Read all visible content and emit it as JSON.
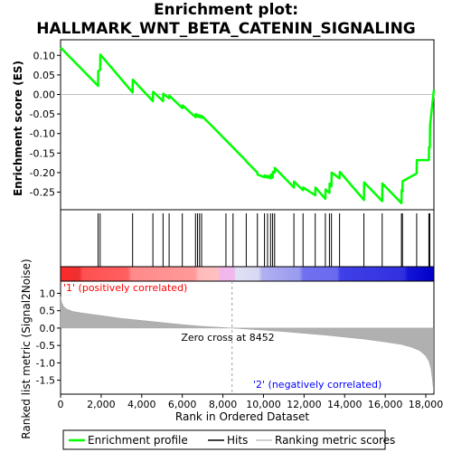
{
  "chart_data": {
    "type": "line",
    "title_line1": "Enrichment plot:",
    "title_line2": "HALLMARK_WNT_BETA_CATENIN_SIGNALING",
    "enrichment_panel": {
      "ylabel": "Enrichment score (ES)",
      "ylim": [
        -0.295,
        0.14
      ],
      "yticks": [
        0.1,
        0.05,
        0.0,
        -0.05,
        -0.1,
        -0.15,
        -0.2,
        -0.25
      ],
      "ytick_labels": [
        "0.10",
        "0.05",
        "0.00",
        "-0.05",
        "-0.10",
        "-0.15",
        "-0.20",
        "-0.25"
      ],
      "series": [
        {
          "name": "Enrichment profile",
          "color": "#00ff00",
          "x": [
            0,
            1850,
            1860,
            1950,
            1960,
            3550,
            3560,
            4550,
            4560,
            5050,
            5060,
            5350,
            5360,
            6000,
            6010,
            6650,
            6660,
            6750,
            6760,
            6850,
            6860,
            6950,
            6960,
            7350,
            9150,
            9160,
            9700,
            9710,
            10050,
            10060,
            10200,
            10210,
            10350,
            10360,
            10450,
            10460,
            10550,
            10560,
            11500,
            11510,
            11950,
            11960,
            12550,
            12560,
            13050,
            13060,
            13250,
            13260,
            13350,
            13360,
            13750,
            13760,
            14950,
            14960,
            15850,
            15860,
            16800,
            16810,
            16850,
            16860,
            17550,
            17560,
            18150,
            18160,
            18200,
            18210,
            18400
          ],
          "y": [
            0.12,
            0.022,
            0.06,
            0.063,
            0.102,
            0.005,
            0.038,
            -0.017,
            0.007,
            -0.017,
            0.002,
            -0.01,
            -0.003,
            -0.035,
            -0.028,
            -0.058,
            -0.05,
            -0.057,
            -0.052,
            -0.058,
            -0.054,
            -0.06,
            -0.055,
            -0.075,
            -0.17,
            -0.172,
            -0.2,
            -0.205,
            -0.212,
            -0.207,
            -0.213,
            -0.208,
            -0.215,
            -0.205,
            -0.213,
            -0.198,
            -0.2,
            -0.188,
            -0.238,
            -0.223,
            -0.245,
            -0.238,
            -0.258,
            -0.238,
            -0.267,
            -0.243,
            -0.252,
            -0.228,
            -0.235,
            -0.2,
            -0.215,
            -0.198,
            -0.27,
            -0.225,
            -0.273,
            -0.228,
            -0.278,
            -0.245,
            -0.248,
            -0.222,
            -0.202,
            -0.168,
            -0.168,
            -0.135,
            -0.135,
            -0.08,
            0.012
          ]
        }
      ]
    },
    "hits_panel": {
      "legend_label": "Hits",
      "positions": [
        1850,
        1950,
        3550,
        4550,
        5050,
        5350,
        6000,
        6650,
        6750,
        6850,
        6950,
        8150,
        8500,
        9150,
        9700,
        10050,
        10200,
        10350,
        10450,
        10550,
        11500,
        11950,
        12550,
        13050,
        13250,
        13350,
        13750,
        14950,
        15850,
        16800,
        16850,
        17550,
        18150,
        18200
      ]
    },
    "rank_panel": {
      "label_positive": "'1' (positively correlated)",
      "label_negative": "'2' (negatively correlated)",
      "positive_color": "#ff0000",
      "negative_color": "#0000ff"
    },
    "metric_panel": {
      "ylabel": "Ranked list metric (Signal2Noise)",
      "xlabel": "Rank in Ordered Dataset",
      "ylim": [
        -1.9,
        1.35
      ],
      "yticks": [
        1.0,
        0.5,
        0.0,
        -0.5,
        -1.0,
        -1.5
      ],
      "ytick_labels": [
        "1.0",
        "0.5",
        "0.0",
        "-0.5",
        "-1.0",
        "-1.5"
      ],
      "zero_cross_label": "Zero cross at 8452",
      "zero_cross": 8452,
      "legend_label": "Ranking metric scores",
      "fill_color": "#b0b0b0",
      "x": [
        0,
        50,
        150,
        300,
        600,
        1000,
        2000,
        3000,
        4000,
        5000,
        6000,
        7000,
        8000,
        8452,
        9000,
        10000,
        11000,
        12000,
        13000,
        14000,
        15000,
        16000,
        16800,
        17300,
        17700,
        18000,
        18150,
        18250,
        18320,
        18380
      ],
      "values": [
        0.9,
        0.75,
        0.62,
        0.55,
        0.48,
        0.44,
        0.36,
        0.28,
        0.22,
        0.16,
        0.1,
        0.05,
        0.015,
        0.0,
        -0.02,
        -0.06,
        -0.1,
        -0.15,
        -0.2,
        -0.26,
        -0.32,
        -0.4,
        -0.47,
        -0.55,
        -0.65,
        -0.8,
        -0.95,
        -1.15,
        -1.45,
        -1.8
      ]
    },
    "x_axis": {
      "xlim": [
        0,
        18400
      ],
      "xticks": [
        0,
        2000,
        4000,
        6000,
        8000,
        10000,
        12000,
        14000,
        16000,
        18000
      ],
      "xtick_labels": [
        "0",
        "2,000",
        "4,000",
        "6,000",
        "8,000",
        "10,000",
        "12,000",
        "14,000",
        "16,000",
        "18,000"
      ]
    },
    "legend": {
      "placement": "bottom",
      "entries": [
        "Enrichment profile",
        "Hits",
        "Ranking metric scores"
      ]
    }
  }
}
